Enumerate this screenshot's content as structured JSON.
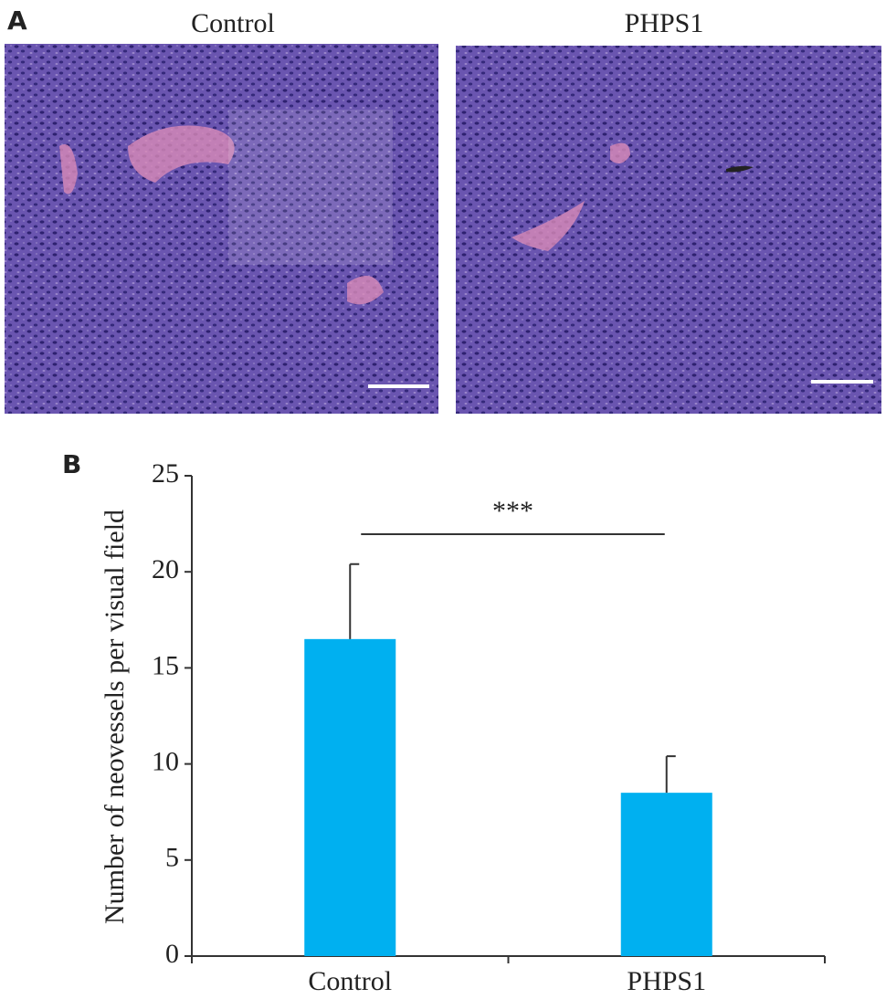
{
  "panel_a": {
    "label": "A",
    "images": [
      {
        "title": "Control"
      },
      {
        "title": "PHPS1"
      }
    ]
  },
  "chart_data": {
    "type": "bar",
    "panel_label": "B",
    "y_label": "Number of neovessels per visual field",
    "categories": [
      "Control",
      "PHPS1"
    ],
    "values": [
      16.5,
      8.5
    ],
    "errors": [
      3.9,
      1.9
    ],
    "color": "#00b0f0",
    "ylim": [
      0,
      25
    ],
    "yticks": [
      0,
      5,
      10,
      15,
      20,
      25
    ],
    "significance": "***"
  }
}
